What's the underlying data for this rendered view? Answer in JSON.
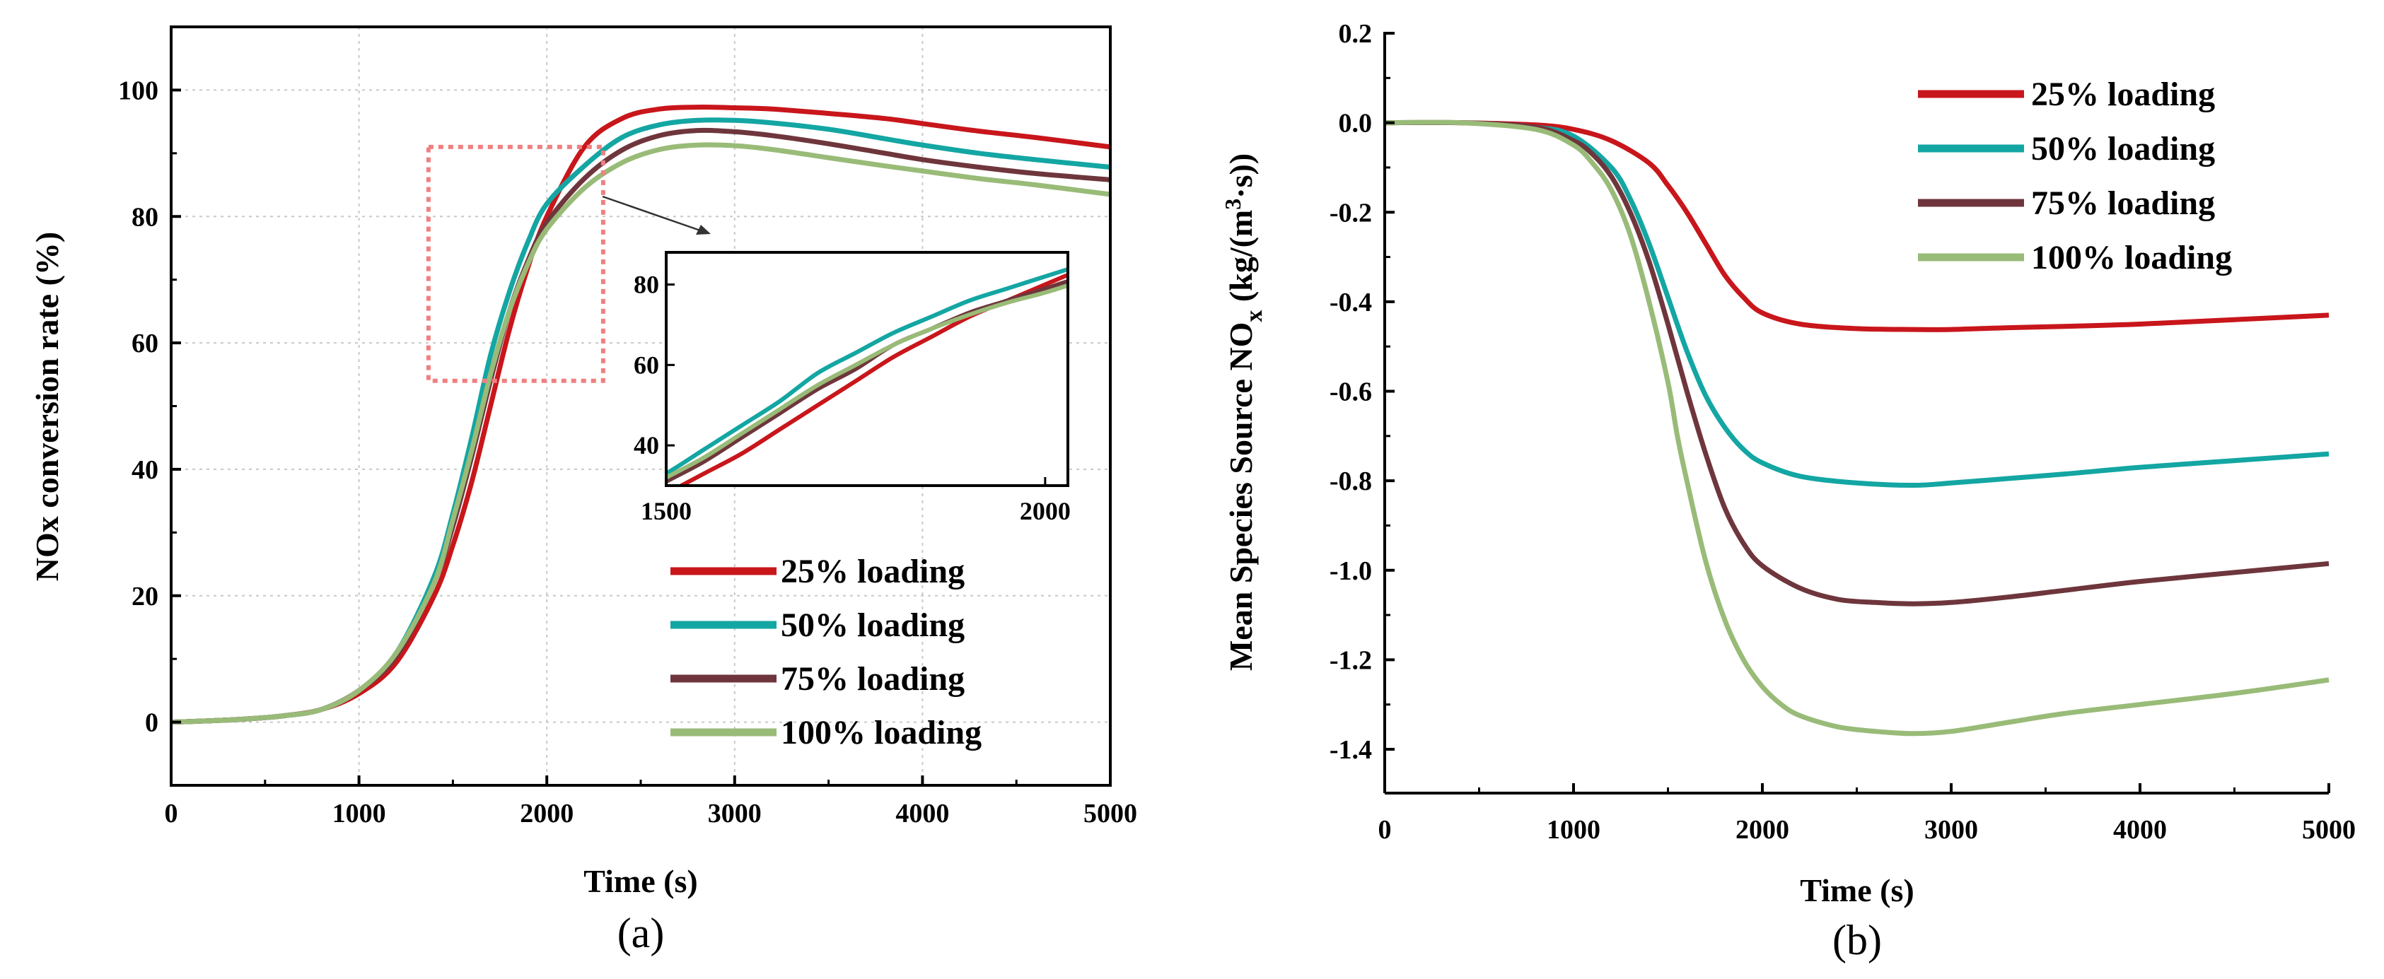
{
  "chart_data": [
    {
      "type": "line",
      "panel_label": "(a)",
      "xlabel": "Time (s)",
      "ylabel": "NOx conversion rate (%)",
      "xlim": [
        0,
        5000
      ],
      "ylim": [
        -10,
        110
      ],
      "xticks": [
        0,
        1000,
        2000,
        3000,
        4000,
        5000
      ],
      "yticks": [
        0,
        20,
        40,
        60,
        80,
        100
      ],
      "grid": true,
      "legend_position": "bottom-right",
      "series": [
        {
          "name": "25% loading",
          "color": "#c8161b",
          "x": [
            0,
            200,
            400,
            600,
            800,
            1000,
            1200,
            1400,
            1500,
            1600,
            1700,
            1800,
            1900,
            2000,
            2200,
            2400,
            2600,
            2800,
            3000,
            3200,
            3500,
            3800,
            4000,
            4300,
            4600,
            5000
          ],
          "y": [
            0,
            0.2,
            0.5,
            1,
            2,
            4.5,
            9.5,
            20,
            28,
            38,
            50,
            62,
            72,
            80,
            91,
            95.5,
            97,
            97.3,
            97.2,
            97,
            96.3,
            95.5,
            94.7,
            93.5,
            92.5,
            91
          ]
        },
        {
          "name": "50% loading",
          "color": "#13a6a3",
          "x": [
            0,
            200,
            400,
            600,
            800,
            1000,
            1200,
            1400,
            1500,
            1600,
            1700,
            1800,
            1900,
            2000,
            2200,
            2400,
            2600,
            2800,
            3000,
            3200,
            3500,
            3800,
            4000,
            4300,
            4600,
            5000
          ],
          "y": [
            0,
            0.2,
            0.5,
            1,
            2,
            5,
            11,
            23,
            33,
            45,
            58,
            68,
            76,
            82,
            88,
            92.5,
            94.5,
            95.2,
            95.2,
            94.8,
            93.8,
            92.3,
            91.3,
            90,
            89,
            87.8
          ]
        },
        {
          "name": "75% loading",
          "color": "#6e363c",
          "x": [
            0,
            200,
            400,
            600,
            800,
            1000,
            1200,
            1400,
            1500,
            1600,
            1700,
            1800,
            1900,
            2000,
            2200,
            2400,
            2600,
            2800,
            3000,
            3200,
            3500,
            3800,
            4000,
            4300,
            4600,
            5000
          ],
          "y": [
            0,
            0.2,
            0.5,
            1,
            2,
            5,
            10.5,
            22,
            31,
            42,
            54,
            65,
            73,
            79,
            86,
            90.5,
            92.8,
            93.6,
            93.4,
            92.8,
            91.5,
            90,
            89,
            87.8,
            86.8,
            85.8
          ]
        },
        {
          "name": "100% loading",
          "color": "#99bb78",
          "x": [
            0,
            200,
            400,
            600,
            800,
            1000,
            1200,
            1400,
            1500,
            1600,
            1700,
            1800,
            1900,
            2000,
            2200,
            2400,
            2600,
            2800,
            3000,
            3200,
            3500,
            3800,
            4000,
            4300,
            4600,
            5000
          ],
          "y": [
            0,
            0.2,
            0.5,
            1,
            2,
            5,
            11,
            22,
            32,
            43,
            55,
            65,
            72.5,
            78,
            84.5,
            88.5,
            90.6,
            91.3,
            91.2,
            90.6,
            89.3,
            88,
            87.2,
            86,
            85,
            83.5
          ]
        }
      ],
      "inset": {
        "xlim": [
          1500,
          2030
        ],
        "ylim": [
          30,
          88
        ],
        "xticks": [
          1500,
          2000
        ],
        "yticks": [
          40,
          60,
          80
        ],
        "series_x": [
          1450,
          1500,
          1550,
          1600,
          1650,
          1700,
          1750,
          1800,
          1850,
          1900,
          1950,
          2000,
          2050
        ],
        "series_y": [
          [
            23,
            28,
            33,
            38,
            44,
            50,
            56,
            62,
            67,
            72,
            76,
            80,
            84
          ],
          [
            28,
            33,
            39,
            45,
            51,
            58,
            63,
            68,
            72,
            76,
            79,
            82,
            85
          ],
          [
            26,
            31,
            36,
            42,
            48,
            54,
            59,
            65,
            69,
            73,
            76,
            79,
            82
          ],
          [
            27,
            32,
            37,
            43,
            49,
            55,
            60,
            65,
            69,
            72.5,
            75.5,
            78,
            81
          ]
        ],
        "zoom_box": {
          "x": [
            1370,
            2300
          ],
          "y": [
            54,
            91
          ]
        }
      }
    },
    {
      "type": "line",
      "panel_label": "(b)",
      "xlabel": "Time (s)",
      "ylabel_main": "Mean Species Source NO",
      "ylabel_sub": "x",
      "ylabel_unit_open": " (kg/(m",
      "ylabel_sup": "3",
      "ylabel_unit_close": "·s))",
      "xlim": [
        0,
        5000
      ],
      "ylim": [
        -1.5,
        0.2
      ],
      "xticks": [
        0,
        1000,
        2000,
        3000,
        4000,
        5000
      ],
      "yticks": [
        "0.2",
        "0.0",
        "-0.2",
        "-0.4",
        "-0.6",
        "-0.8",
        "-1.0",
        "-1.2",
        "-1.4"
      ],
      "ytick_values": [
        0.2,
        0,
        -0.2,
        -0.4,
        -0.6,
        -0.8,
        -1.0,
        -1.2,
        -1.4
      ],
      "grid": false,
      "legend_position": "top-right",
      "series": [
        {
          "name": "25% loading",
          "color": "#c8161b",
          "x": [
            0,
            400,
            800,
            1000,
            1200,
            1400,
            1500,
            1600,
            1700,
            1800,
            1900,
            2000,
            2200,
            2500,
            2800,
            3000,
            3300,
            3600,
            4000,
            4500,
            5000
          ],
          "y": [
            0,
            0,
            -0.005,
            -0.015,
            -0.04,
            -0.09,
            -0.14,
            -0.2,
            -0.27,
            -0.34,
            -0.39,
            -0.425,
            -0.45,
            -0.46,
            -0.462,
            -0.462,
            -0.458,
            -0.455,
            -0.45,
            -0.44,
            -0.43
          ]
        },
        {
          "name": "50% loading",
          "color": "#13a6a3",
          "x": [
            0,
            400,
            800,
            1000,
            1200,
            1300,
            1400,
            1500,
            1600,
            1700,
            1800,
            1900,
            2000,
            2200,
            2500,
            2800,
            3000,
            3300,
            3600,
            4000,
            4500,
            5000
          ],
          "y": [
            0,
            0,
            -0.01,
            -0.03,
            -0.1,
            -0.17,
            -0.27,
            -0.39,
            -0.51,
            -0.61,
            -0.68,
            -0.73,
            -0.76,
            -0.79,
            -0.805,
            -0.81,
            -0.805,
            -0.795,
            -0.785,
            -0.77,
            -0.755,
            -0.74
          ]
        },
        {
          "name": "75% loading",
          "color": "#6e363c",
          "x": [
            0,
            400,
            800,
            1000,
            1100,
            1200,
            1300,
            1400,
            1500,
            1600,
            1700,
            1800,
            1900,
            2000,
            2200,
            2400,
            2600,
            2800,
            3000,
            3300,
            3600,
            4000,
            4500,
            5000
          ],
          "y": [
            0,
            0,
            -0.01,
            -0.04,
            -0.07,
            -0.12,
            -0.2,
            -0.31,
            -0.45,
            -0.6,
            -0.74,
            -0.86,
            -0.94,
            -0.99,
            -1.04,
            -1.065,
            -1.072,
            -1.075,
            -1.072,
            -1.06,
            -1.045,
            -1.025,
            -1.005,
            -0.985
          ]
        },
        {
          "name": "100% loading",
          "color": "#99bb78",
          "x": [
            0,
            400,
            800,
            1000,
            1100,
            1200,
            1300,
            1400,
            1500,
            1550,
            1600,
            1700,
            1800,
            1900,
            2000,
            2100,
            2200,
            2400,
            2600,
            2800,
            3000,
            3300,
            3600,
            4000,
            4500,
            5000
          ],
          "y": [
            0,
            0,
            -0.015,
            -0.05,
            -0.09,
            -0.15,
            -0.25,
            -0.4,
            -0.58,
            -0.7,
            -0.8,
            -0.98,
            -1.11,
            -1.2,
            -1.26,
            -1.3,
            -1.325,
            -1.35,
            -1.36,
            -1.365,
            -1.36,
            -1.34,
            -1.32,
            -1.3,
            -1.275,
            -1.245
          ]
        }
      ]
    }
  ]
}
